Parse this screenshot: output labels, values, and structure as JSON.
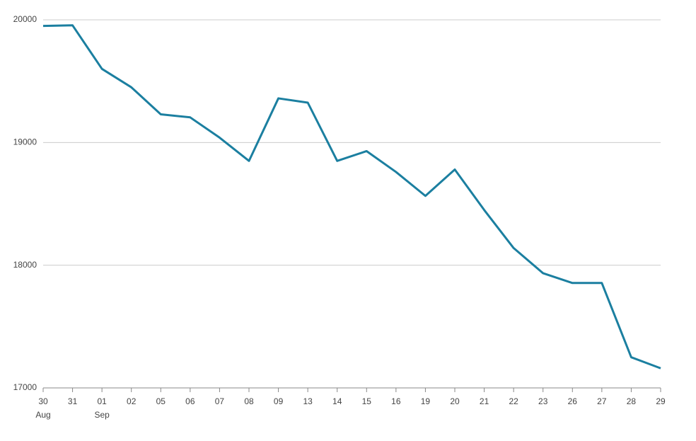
{
  "chart_data": {
    "type": "line",
    "categories": [
      "30",
      "31",
      "01",
      "02",
      "05",
      "06",
      "07",
      "08",
      "09",
      "13",
      "14",
      "15",
      "16",
      "19",
      "20",
      "21",
      "22",
      "23",
      "26",
      "27",
      "28",
      "29"
    ],
    "months": [
      "Aug",
      null,
      "Sep",
      null,
      null,
      null,
      null,
      null,
      null,
      null,
      null,
      null,
      null,
      null,
      null,
      null,
      null,
      null,
      null,
      null,
      null,
      null
    ],
    "values": [
      19950,
      19955,
      19600,
      19450,
      19230,
      19205,
      19040,
      18850,
      19360,
      19325,
      18850,
      18930,
      18760,
      18565,
      18780,
      18450,
      18140,
      17935,
      17855,
      17855,
      17250,
      17160
    ],
    "color": "#1b7fa0",
    "ylim": [
      17000,
      20000
    ],
    "yticks": [
      17000,
      18000,
      19000,
      20000
    ],
    "grid": true
  }
}
